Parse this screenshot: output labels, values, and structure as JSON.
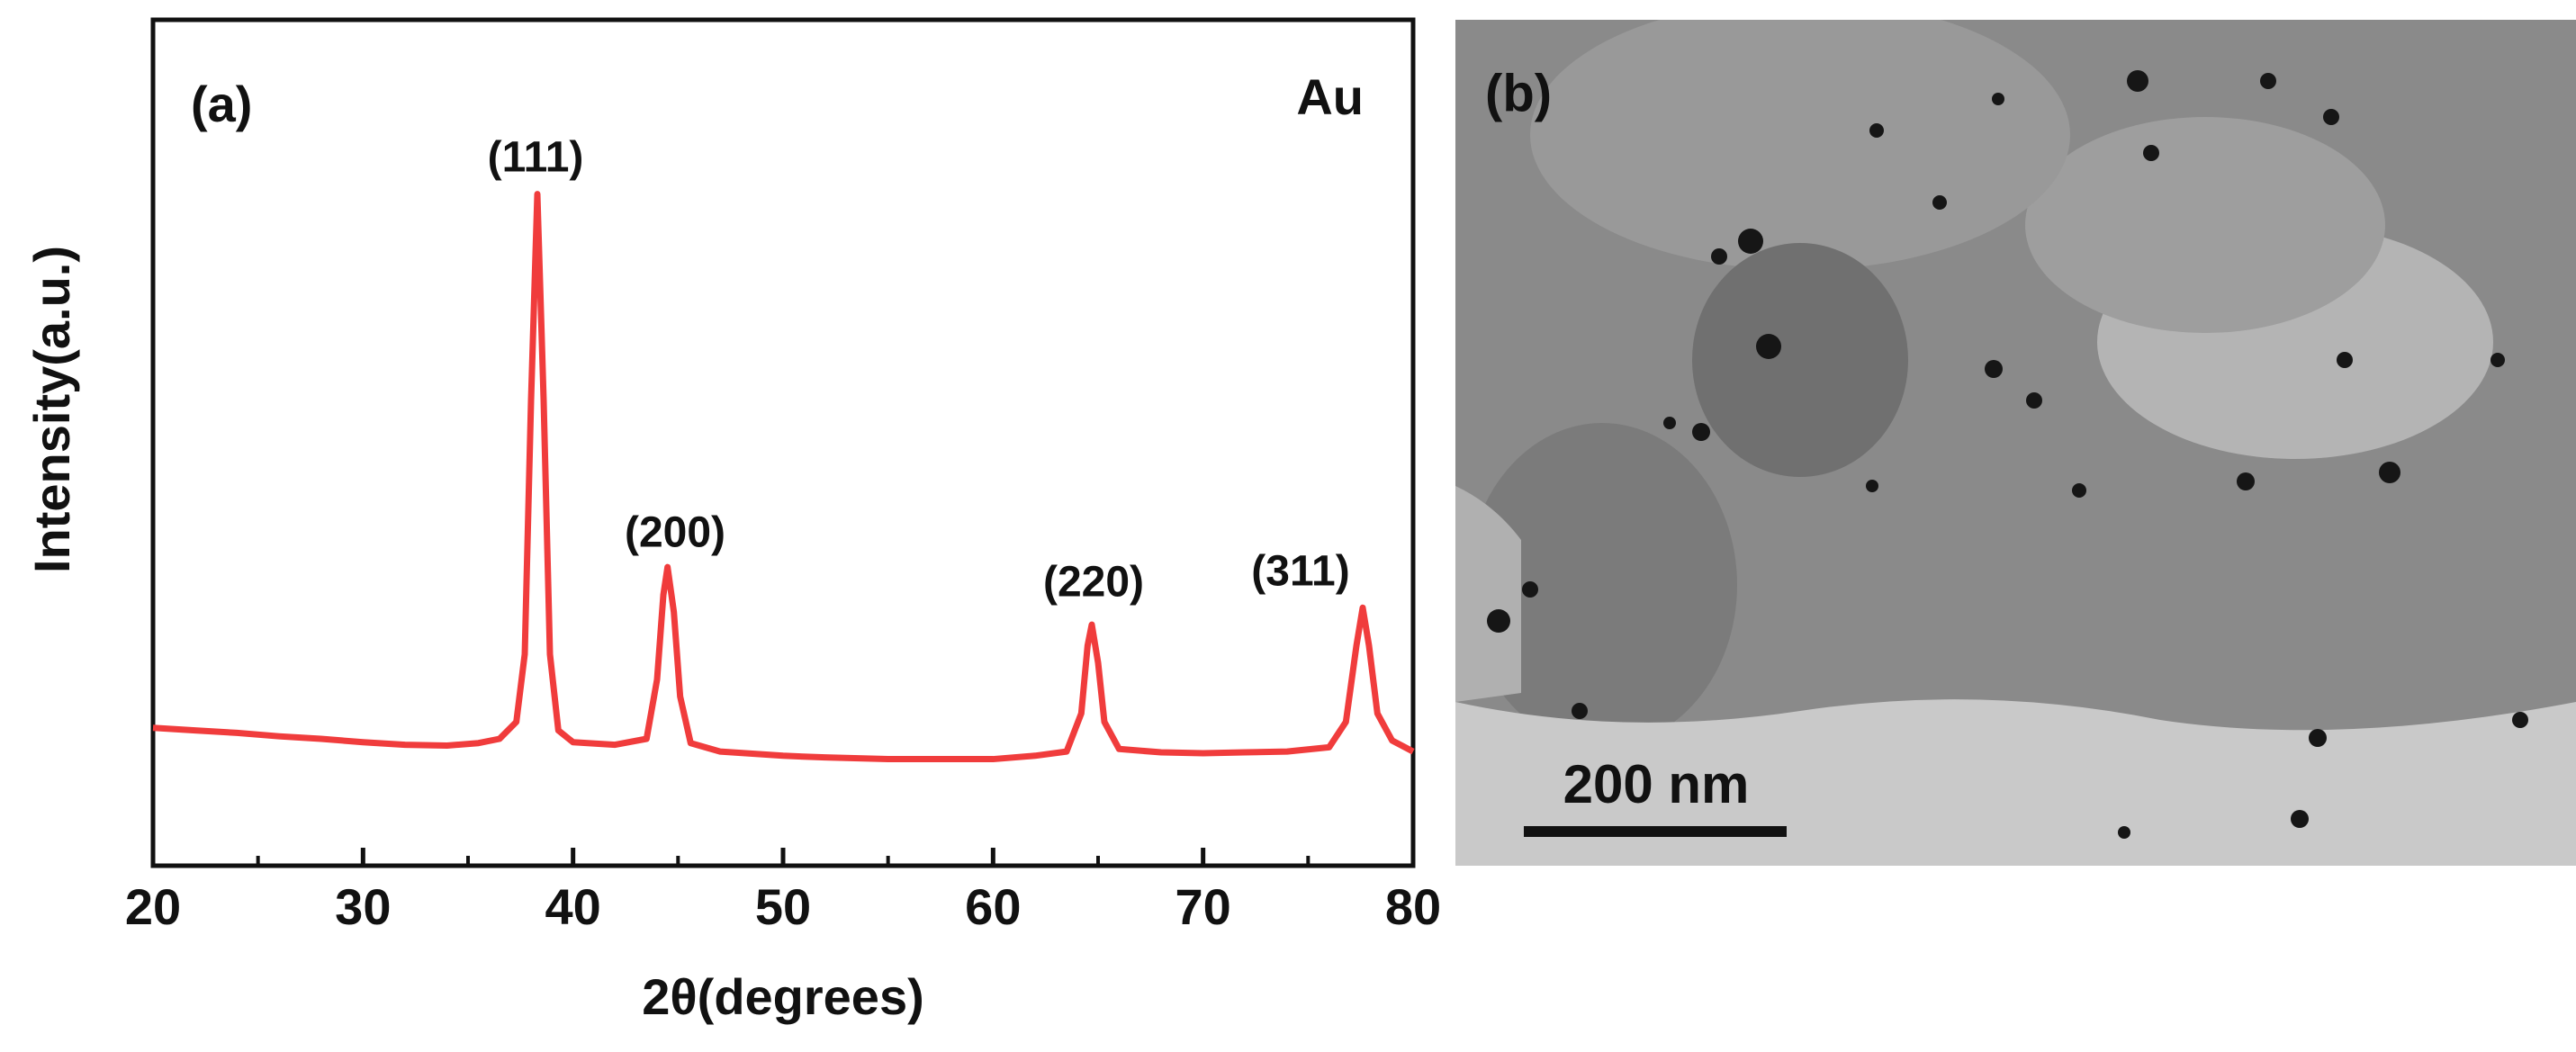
{
  "chart_data": {
    "type": "line",
    "panel_label": "(a)",
    "annotation_main": "Au",
    "xlabel": "2θ(degrees)",
    "ylabel": "Intensity(a.u.)",
    "color": "#f03c3c",
    "x": [
      20,
      22,
      24,
      26,
      28,
      30,
      32,
      34,
      35.5,
      36.5,
      37.3,
      37.7,
      38.0,
      38.3,
      38.6,
      38.9,
      39.3,
      40,
      42,
      43.5,
      44,
      44.3,
      44.5,
      44.8,
      45.1,
      45.6,
      47,
      50,
      52,
      55,
      58,
      60,
      62,
      63.5,
      64.2,
      64.5,
      64.7,
      65,
      65.3,
      66,
      68,
      70,
      72,
      74,
      76,
      76.8,
      77.3,
      77.6,
      77.9,
      78.3,
      79,
      80
    ],
    "values": [
      16.3,
      16,
      15.7,
      15.3,
      15,
      14.6,
      14.3,
      14.2,
      14.5,
      15,
      17,
      25,
      55,
      79.4,
      55,
      25,
      16,
      14.6,
      14.3,
      15,
      22,
      32,
      35.3,
      30,
      20,
      14.5,
      13.5,
      13,
      12.8,
      12.6,
      12.6,
      12.6,
      13,
      13.5,
      18,
      26,
      28.5,
      24,
      17,
      13.8,
      13.4,
      13.3,
      13.4,
      13.5,
      14,
      17,
      26,
      30.5,
      26,
      18,
      14.8,
      13.5
    ],
    "xlim": [
      20,
      80
    ],
    "xticks": [
      20,
      30,
      40,
      50,
      60,
      70,
      80
    ],
    "xminor_ticks": [
      25,
      35,
      45,
      55,
      65,
      75
    ],
    "ylim": [
      0,
      100
    ],
    "peak_labels": [
      "(111)",
      "(200)",
      "(220)",
      "(311)"
    ]
  },
  "panel_b": {
    "label": "(b)",
    "scale_bar": "200 nm"
  }
}
